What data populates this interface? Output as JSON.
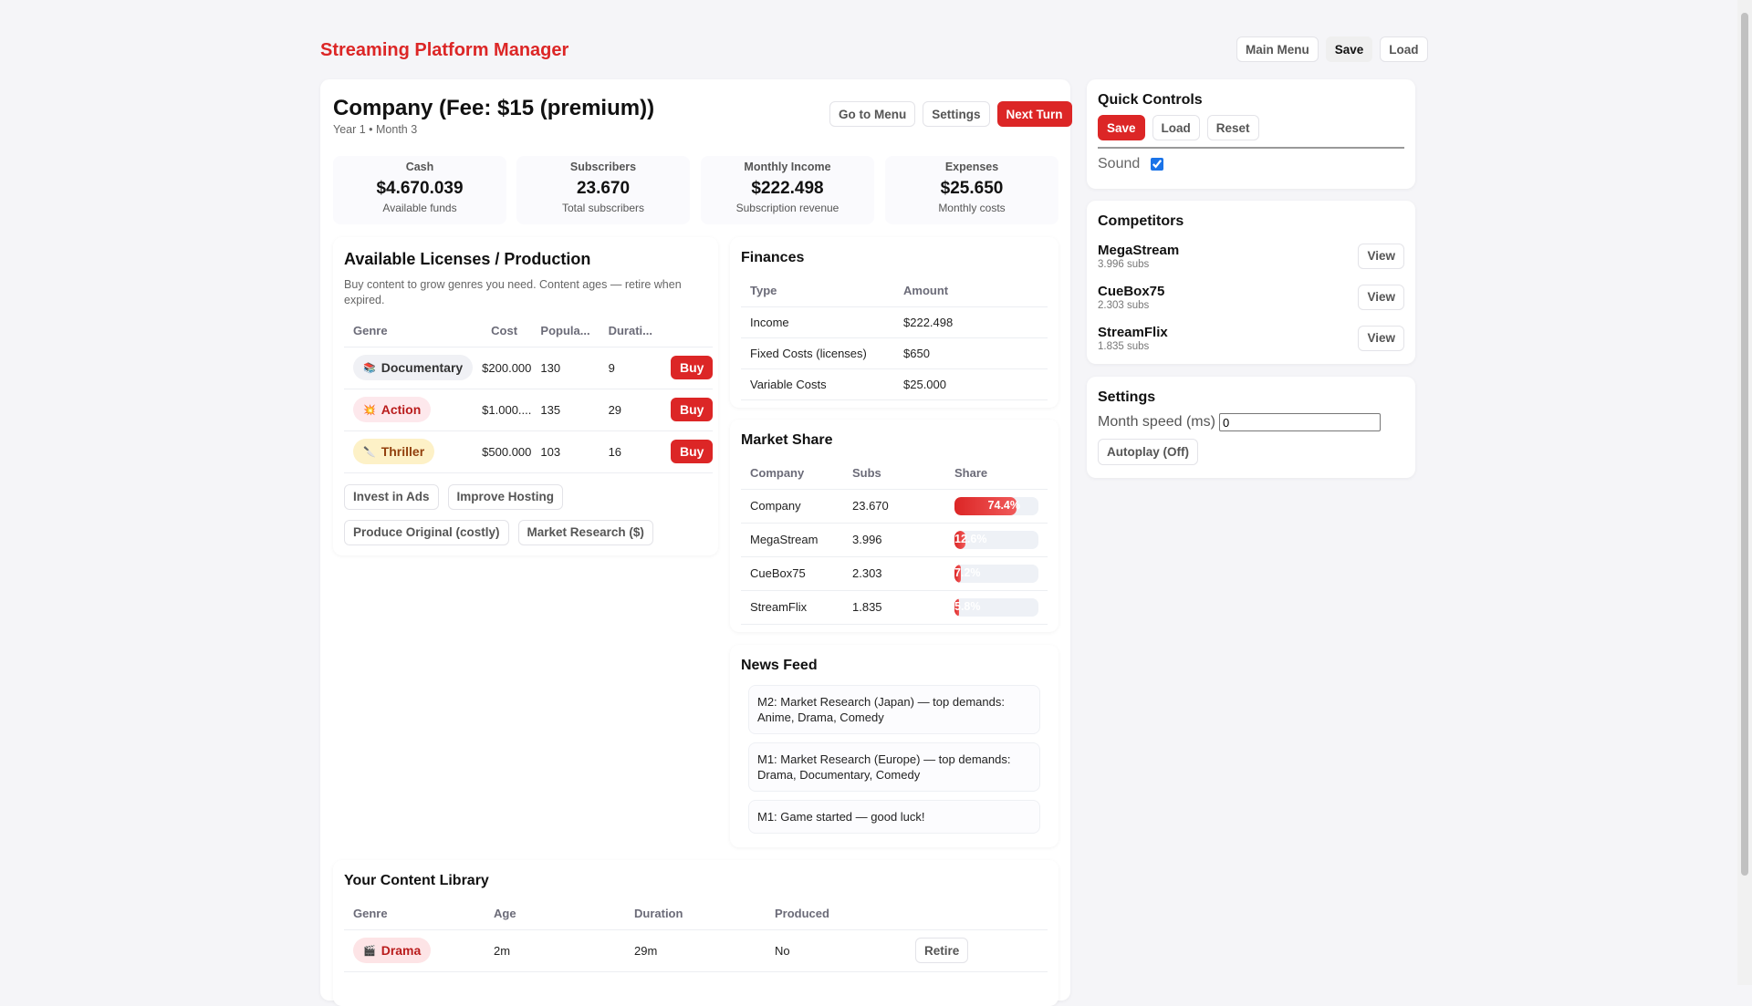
{
  "app_title": "Streaming Platform Manager",
  "top_nav": {
    "main_menu": "Main Menu",
    "save": "Save",
    "load": "Load"
  },
  "header": {
    "title": "Company (Fee: $15 (premium))",
    "subtitle": "Year 1 • Month 3",
    "go_to_menu": "Go to Menu",
    "settings": "Settings",
    "next_turn": "Next Turn"
  },
  "stats": [
    {
      "label": "Cash",
      "value": "$4.670.039",
      "sub": "Available funds"
    },
    {
      "label": "Subscribers",
      "value": "23.670",
      "sub": "Total subscribers"
    },
    {
      "label": "Monthly Income",
      "value": "$222.498",
      "sub": "Subscription revenue"
    },
    {
      "label": "Expenses",
      "value": "$25.650",
      "sub": "Monthly costs"
    }
  ],
  "licenses": {
    "title": "Available Licenses / Production",
    "desc": "Buy content to grow genres you need. Content ages — retire when expired.",
    "columns": [
      "Genre",
      "Cost",
      "Popula...",
      "Durati..."
    ],
    "rows": [
      {
        "genre": "Documentary",
        "icon": "📚",
        "cost": "$200.000",
        "popularity": "130",
        "duration": "9",
        "action": "Buy"
      },
      {
        "genre": "Action",
        "icon": "💥",
        "cost": "$1.000....",
        "popularity": "135",
        "duration": "29",
        "action": "Buy"
      },
      {
        "genre": "Thriller",
        "icon": "🔪",
        "cost": "$500.000",
        "popularity": "103",
        "duration": "16",
        "action": "Buy"
      }
    ],
    "actions": [
      "Invest in Ads",
      "Improve Hosting",
      "Produce Original (costly)",
      "Market Research ($)"
    ]
  },
  "finances": {
    "title": "Finances",
    "columns": [
      "Type",
      "Amount"
    ],
    "rows": [
      {
        "type": "Income",
        "amount": "$222.498"
      },
      {
        "type": "Fixed Costs (licenses)",
        "amount": "$650"
      },
      {
        "type": "Variable Costs",
        "amount": "$25.000"
      }
    ]
  },
  "market_share": {
    "title": "Market Share",
    "columns": [
      "Company",
      "Subs",
      "Share"
    ],
    "rows": [
      {
        "company": "Company",
        "subs": "23.670",
        "share": "74.4%",
        "pct": 74.4
      },
      {
        "company": "MegaStream",
        "subs": "3.996",
        "share": "12.6%",
        "pct": 12.6
      },
      {
        "company": "CueBox75",
        "subs": "2.303",
        "share": "7.2%",
        "pct": 7.2
      },
      {
        "company": "StreamFlix",
        "subs": "1.835",
        "share": "5.8%",
        "pct": 5.8
      }
    ]
  },
  "news": {
    "title": "News Feed",
    "items": [
      "M2: Market Research (Japan) — top demands: Anime, Drama, Comedy",
      "M1: Market Research (Europe) — top demands: Drama, Documentary, Comedy",
      "M1: Game started — good luck!"
    ]
  },
  "library": {
    "title": "Your Content Library",
    "columns": [
      "Genre",
      "Age",
      "Duration",
      "Produced"
    ],
    "rows": [
      {
        "genre": "Drama",
        "icon": "🎬",
        "age": "2m",
        "duration": "29m",
        "produced": "No",
        "action": "Retire"
      }
    ]
  },
  "quick_controls": {
    "title": "Quick Controls",
    "save": "Save",
    "load": "Load",
    "reset": "Reset",
    "sound_label": "Sound",
    "sound_checked": true
  },
  "competitors": {
    "title": "Competitors",
    "items": [
      {
        "name": "MegaStream",
        "subs": "3.996 subs",
        "action": "View"
      },
      {
        "name": "CueBox75",
        "subs": "2.303 subs",
        "action": "View"
      },
      {
        "name": "StreamFlix",
        "subs": "1.835 subs",
        "action": "View"
      }
    ]
  },
  "settings": {
    "title": "Settings",
    "month_speed_label": "Month speed (ms)",
    "month_speed_value": "0",
    "autoplay": "Autoplay (Off)"
  },
  "colors": {
    "accent": "#dc2626",
    "background": "#f5f5f8"
  }
}
